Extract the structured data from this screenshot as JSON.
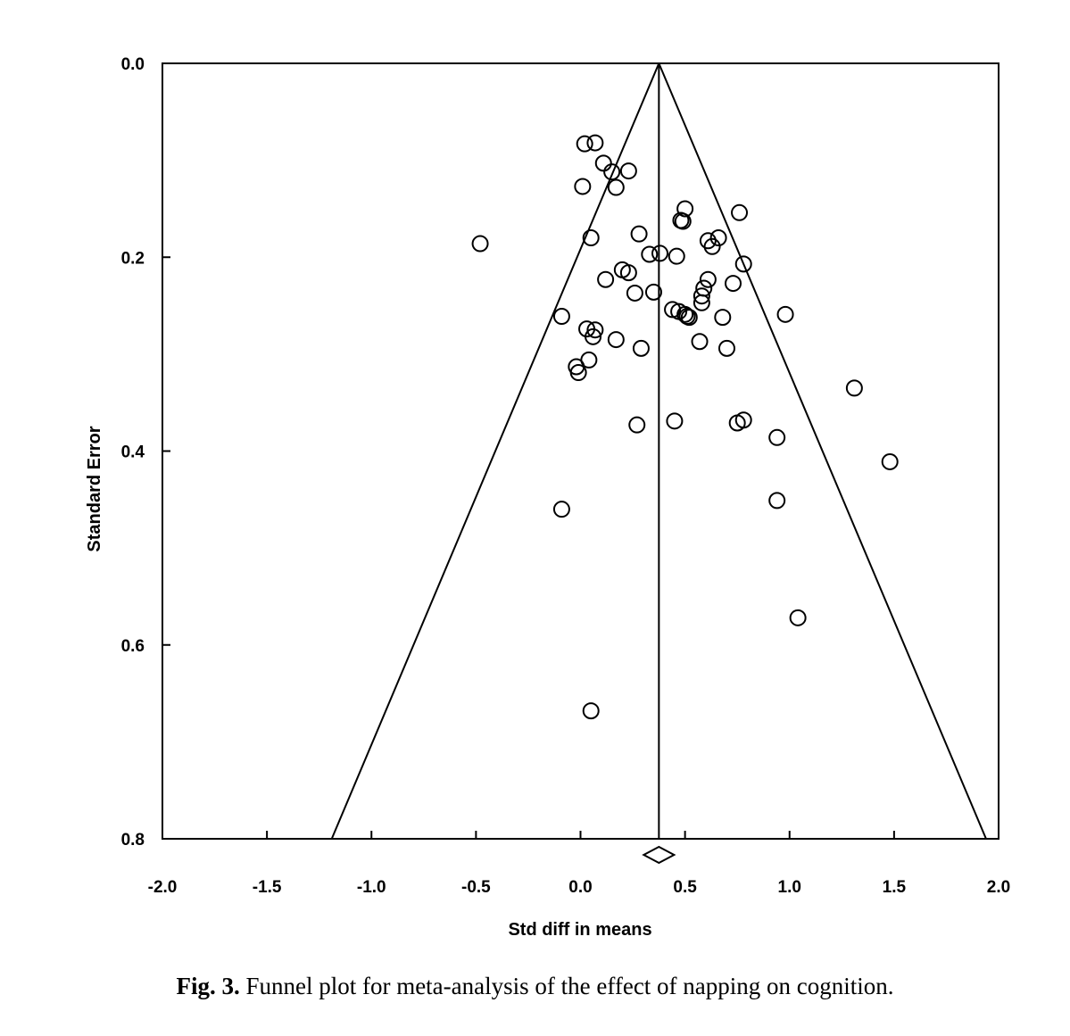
{
  "chart_data": {
    "type": "scatter",
    "subtype": "funnel",
    "xlabel": "Std diff in means",
    "ylabel": "Standard Error",
    "xlim": [
      -2.0,
      2.0
    ],
    "ylim": [
      0.0,
      0.8
    ],
    "y_inverted": true,
    "xticks": [
      "-2.0",
      "-1.5",
      "-1.0",
      "-0.5",
      "0.0",
      "0.5",
      "1.0",
      "1.5",
      "2.0"
    ],
    "yticks": [
      "0.0",
      "0.2",
      "0.4",
      "0.6",
      "0.8"
    ],
    "pooled_estimate": 0.375,
    "funnel_lower_bound_at_max_se": -1.19,
    "funnel_upper_bound_at_max_se": 1.94,
    "points": [
      {
        "x": 0.02,
        "y": 0.083
      },
      {
        "x": 0.07,
        "y": 0.082
      },
      {
        "x": 0.11,
        "y": 0.103
      },
      {
        "x": 0.15,
        "y": 0.112
      },
      {
        "x": 0.23,
        "y": 0.111
      },
      {
        "x": 0.01,
        "y": 0.127
      },
      {
        "x": 0.17,
        "y": 0.128
      },
      {
        "x": 0.5,
        "y": 0.15
      },
      {
        "x": 0.76,
        "y": 0.154
      },
      {
        "x": 0.48,
        "y": 0.162
      },
      {
        "x": 0.49,
        "y": 0.163
      },
      {
        "x": 0.05,
        "y": 0.18
      },
      {
        "x": 0.28,
        "y": 0.176
      },
      {
        "x": 0.61,
        "y": 0.183
      },
      {
        "x": 0.66,
        "y": 0.18
      },
      {
        "x": 0.63,
        "y": 0.189
      },
      {
        "x": -0.48,
        "y": 0.186
      },
      {
        "x": 0.33,
        "y": 0.197
      },
      {
        "x": 0.38,
        "y": 0.196
      },
      {
        "x": 0.46,
        "y": 0.199
      },
      {
        "x": 0.78,
        "y": 0.207
      },
      {
        "x": 0.2,
        "y": 0.213
      },
      {
        "x": 0.23,
        "y": 0.216
      },
      {
        "x": 0.12,
        "y": 0.223
      },
      {
        "x": 0.61,
        "y": 0.223
      },
      {
        "x": 0.73,
        "y": 0.227
      },
      {
        "x": 0.59,
        "y": 0.232
      },
      {
        "x": 0.26,
        "y": 0.237
      },
      {
        "x": 0.35,
        "y": 0.236
      },
      {
        "x": 0.58,
        "y": 0.24
      },
      {
        "x": 0.58,
        "y": 0.247
      },
      {
        "x": 0.44,
        "y": 0.254
      },
      {
        "x": 0.47,
        "y": 0.256
      },
      {
        "x": 0.5,
        "y": 0.259
      },
      {
        "x": 0.51,
        "y": 0.261
      },
      {
        "x": 0.52,
        "y": 0.262
      },
      {
        "x": -0.09,
        "y": 0.261
      },
      {
        "x": 0.68,
        "y": 0.262
      },
      {
        "x": 0.98,
        "y": 0.259
      },
      {
        "x": 0.03,
        "y": 0.274
      },
      {
        "x": 0.07,
        "y": 0.275
      },
      {
        "x": 0.06,
        "y": 0.282
      },
      {
        "x": 0.17,
        "y": 0.285
      },
      {
        "x": 0.57,
        "y": 0.287
      },
      {
        "x": 0.29,
        "y": 0.294
      },
      {
        "x": 0.7,
        "y": 0.294
      },
      {
        "x": 0.04,
        "y": 0.306
      },
      {
        "x": -0.02,
        "y": 0.313
      },
      {
        "x": -0.01,
        "y": 0.319
      },
      {
        "x": 1.31,
        "y": 0.335
      },
      {
        "x": 0.45,
        "y": 0.369
      },
      {
        "x": 0.78,
        "y": 0.368
      },
      {
        "x": 0.75,
        "y": 0.371
      },
      {
        "x": 0.27,
        "y": 0.373
      },
      {
        "x": 0.94,
        "y": 0.386
      },
      {
        "x": 1.48,
        "y": 0.411
      },
      {
        "x": 0.94,
        "y": 0.451
      },
      {
        "x": -0.09,
        "y": 0.46
      },
      {
        "x": 1.04,
        "y": 0.572
      },
      {
        "x": 0.05,
        "y": 0.668
      }
    ]
  },
  "caption": {
    "label": "Fig. 3.",
    "text": "Funnel plot for meta-analysis of the effect of napping on cognition."
  }
}
